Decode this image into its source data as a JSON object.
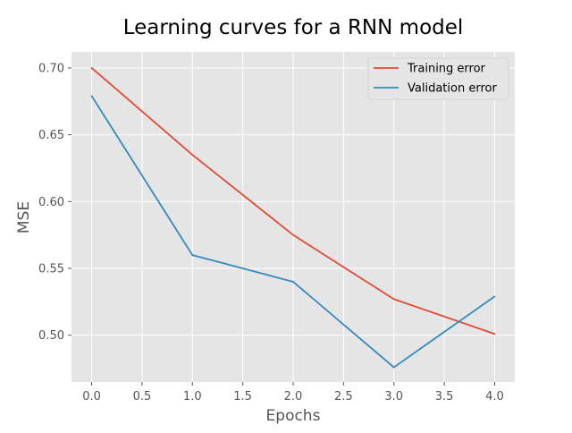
{
  "chart_data": {
    "type": "line",
    "title": "Learning curves for a RNN model",
    "xlabel": "Epochs",
    "ylabel": "MSE",
    "x": [
      0,
      1,
      2,
      3,
      4
    ],
    "xlim": [
      -0.2,
      4.2
    ],
    "ylim": [
      0.465,
      0.712
    ],
    "xticks": [
      0.0,
      0.5,
      1.0,
      1.5,
      2.0,
      2.5,
      3.0,
      3.5,
      4.0
    ],
    "xtick_labels": [
      "0.0",
      "0.5",
      "1.0",
      "1.5",
      "2.0",
      "2.5",
      "3.0",
      "3.5",
      "4.0"
    ],
    "yticks": [
      0.5,
      0.55,
      0.6,
      0.65,
      0.7
    ],
    "ytick_labels": [
      "0.50",
      "0.55",
      "0.60",
      "0.65",
      "0.70"
    ],
    "grid": true,
    "legend_position": "top-right",
    "series": [
      {
        "name": "Training error",
        "color": "#E24A33",
        "values": [
          0.7,
          0.635,
          0.575,
          0.527,
          0.501
        ]
      },
      {
        "name": "Validation error",
        "color": "#348ABD",
        "values": [
          0.679,
          0.56,
          0.54,
          0.476,
          0.529
        ]
      }
    ]
  },
  "colors": {
    "plot_background": "#E5E5E5",
    "grid": "#FFFFFF",
    "tick_text": "#555555",
    "title_text": "#000000"
  }
}
